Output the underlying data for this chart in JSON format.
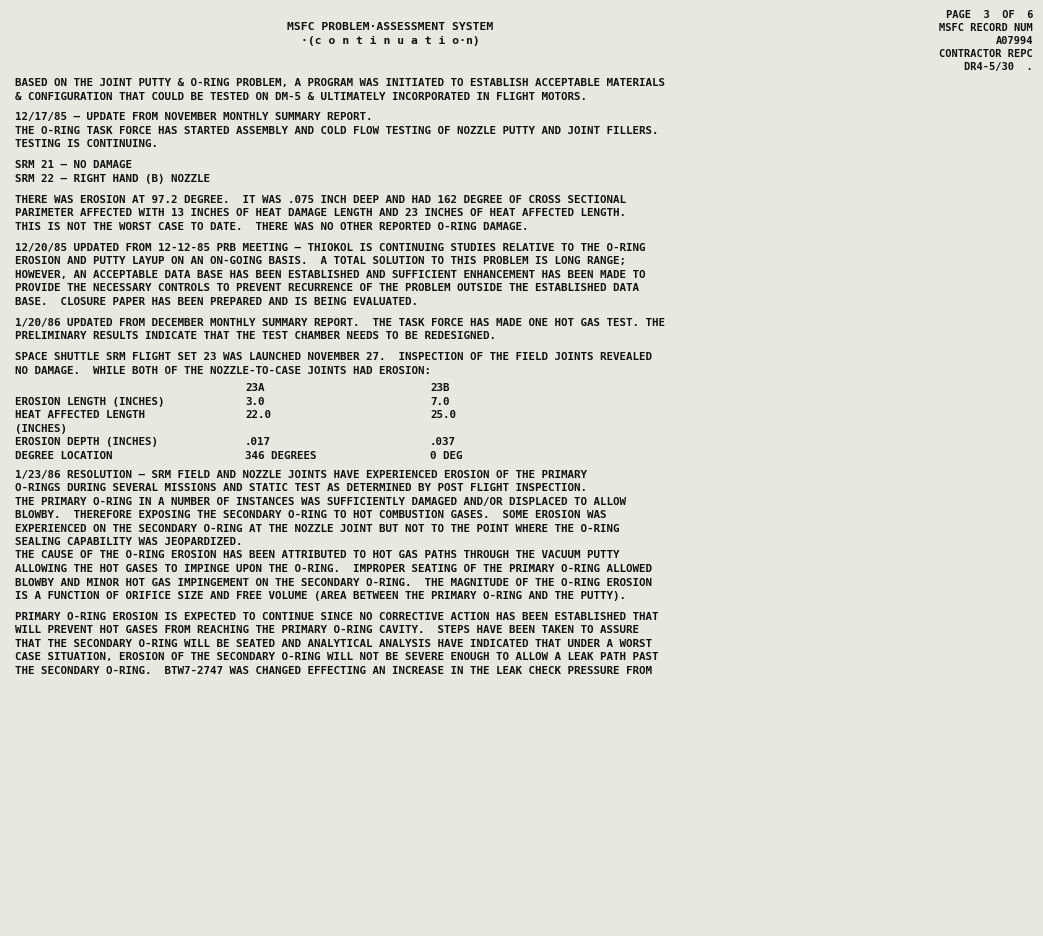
{
  "bg_color": "#e8e8e0",
  "text_color": "#111111",
  "header_center_line1": "MSFC PROBLEM·ASSESSMENT SYSTEM",
  "header_center_line2": "·(c o n t i n u a t i o·n)",
  "header_right_lines": [
    "PAGE  3  OF  6",
    "MSFC RECORD NUM",
    "A07994",
    "CONTRACTOR REPC",
    "DR4-5/30  ."
  ],
  "body_lines": [
    "BASED ON THE JOINT PUTTY & O-RING PROBLEM, A PROGRAM WAS INITIATED TO ESTABLISH ACCEPTABLE MATERIALS",
    "& CONFIGURATION THAT COULD BE TESTED ON DM-5 & ULTIMATELY INCORPORATED IN FLIGHT MOTORS.",
    "",
    "12/17/85 – UPDATE FROM NOVEMBER MONTHLY SUMMARY REPORT.",
    "THE O-RING TASK FORCE HAS STARTED ASSEMBLY AND COLD FLOW TESTING OF NOZZLE PUTTY AND JOINT FILLERS.",
    "TESTING IS CONTINUING.",
    "",
    "SRM 21 – NO DAMAGE",
    "SRM 22 – RIGHT HAND (B) NOZZLE",
    "",
    "THERE WAS EROSION AT 97.2 DEGREE.  IT WAS .075 INCH DEEP AND HAD 162 DEGREE OF CROSS SECTIONAL",
    "PARIMETER AFFECTED WITH 13 INCHES OF HEAT DAMAGE LENGTH AND 23 INCHES OF HEAT AFFECTED LENGTH.",
    "THIS IS NOT THE WORST CASE TO DATE.  THERE WAS NO OTHER REPORTED O-RING DAMAGE.",
    "",
    "12/20/85 UPDATED FROM 12-12-85 PRB MEETING – THIOKOL IS CONTINUING STUDIES RELATIVE TO THE O-RING",
    "EROSION AND PUTTY LAYUP ON AN ON-GOING BASIS.  A TOTAL SOLUTION TO THIS PROBLEM IS LONG RANGE;",
    "HOWEVER, AN ACCEPTABLE DATA BASE HAS BEEN ESTABLISHED AND SUFFICIENT ENHANCEMENT HAS BEEN MADE TO",
    "PROVIDE THE NECESSARY CONTROLS TO PREVENT RECURRENCE OF THE PROBLEM OUTSIDE THE ESTABLISHED DATA",
    "BASE.  CLOSURE PAPER HAS BEEN PREPARED AND IS BEING EVALUATED.",
    "",
    "1/20/86 UPDATED FROM DECEMBER MONTHLY SUMMARY REPORT.  THE TASK FORCE HAS MADE ONE HOT GAS TEST. THE",
    "PRELIMINARY RESULTS INDICATE THAT THE TEST CHAMBER NEEDS TO BE REDESIGNED.",
    "",
    "SPACE SHUTTLE SRM FLIGHT SET 23 WAS LAUNCHED NOVEMBER 27.  INSPECTION OF THE FIELD JOINTS REVEALED",
    "NO DAMAGE.  WHILE BOTH OF THE NOZZLE-TO-CASE JOINTS HAD EROSION:"
  ],
  "table_indent": 230,
  "table_col2": 370,
  "table_col3": 490,
  "table_header_cols": [
    "23A",
    "23B"
  ],
  "table_rows": [
    [
      "EROSION LENGTH (INCHES)",
      "3.0",
      "7.0"
    ],
    [
      "HEAT AFFECTED LENGTH",
      "22.0",
      "25.0"
    ],
    [
      "(INCHES)",
      "",
      ""
    ],
    [
      "EROSION DEPTH (INCHES)",
      ".017",
      ".037"
    ],
    [
      "DEGREE LOCATION",
      "346 DEGREES",
      "0 DEG"
    ]
  ],
  "body_lines2": [
    "1/23/86 RESOLUTION – SRM FIELD AND NOZZLE JOINTS HAVE EXPERIENCED EROSION OF THE PRIMARY",
    "O-RINGS DURING SEVERAL MISSIONS AND STATIC TEST AS DETERMINED BY POST FLIGHT INSPECTION.",
    "THE PRIMARY O-RING IN A NUMBER OF INSTANCES WAS SUFFICIENTLY DAMAGED AND/OR DISPLACED TO ALLOW",
    "BLOWBY.  THEREFORE EXPOSING THE SECONDARY O-RING TO HOT COMBUSTION GASES.  SOME EROSION WAS",
    "EXPERIENCED ON THE SECONDARY O-RING AT THE NOZZLE JOINT BUT NOT TO THE POINT WHERE THE O-RING",
    "SEALING CAPABILITY WAS JEOPARDIZED.",
    "THE CAUSE OF THE O-RING EROSION HAS BEEN ATTRIBUTED TO HOT GAS PATHS THROUGH THE VACUUM PUTTY",
    "ALLOWING THE HOT GASES TO IMPINGE UPON THE O-RING.  IMPROPER SEATING OF THE PRIMARY O-RING ALLOWED",
    "BLOWBY AND MINOR HOT GAS IMPINGEMENT ON THE SECONDARY O-RING.  THE MAGNITUDE OF THE O-RING EROSION",
    "IS A FUNCTION OF ORIFICE SIZE AND FREE VOLUME (AREA BETWEEN THE PRIMARY O-RING AND THE PUTTY).",
    "",
    "PRIMARY O-RING EROSION IS EXPECTED TO CONTINUE SINCE NO CORRECTIVE ACTION HAS BEEN ESTABLISHED THAT",
    "WILL PREVENT HOT GASES FROM REACHING THE PRIMARY O-RING CAVITY.  STEPS HAVE BEEN TAKEN TO ASSURE",
    "THAT THE SECONDARY O-RING WILL BE SEATED AND ANALYTICAL ANALYSIS HAVE INDICATED THAT UNDER A WORST",
    "CASE SITUATION, EROSION OF THE SECONDARY O-RING WILL NOT BE SEVERE ENOUGH TO ALLOW A LEAK PATH PAST",
    "THE SECONDARY O-RING.  BTW7-2747 WAS CHANGED EFFECTING AN INCREASE IN THE LEAK CHECK PRESSURE FROM"
  ],
  "figwidth": 10.43,
  "figheight": 9.36,
  "dpi": 100
}
